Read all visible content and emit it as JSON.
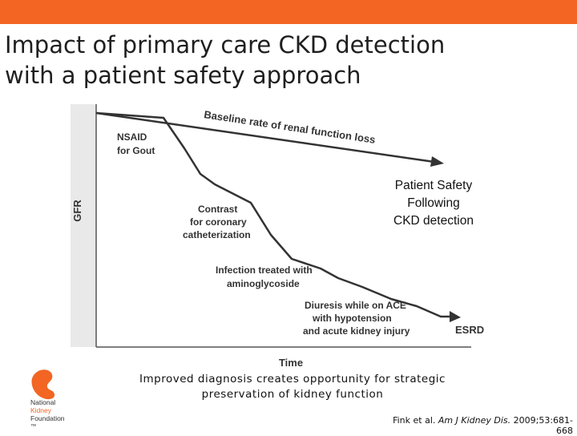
{
  "header": {
    "title_line1": "Impact of primary care CKD detection",
    "title_line2": "with a patient safety approach",
    "bar_color": "#f26522"
  },
  "diagram": {
    "y_axis_label": "GFR",
    "x_axis_label": "Time",
    "baseline_label": "Baseline rate of renal function loss",
    "events": [
      {
        "line1": "NSAID",
        "line2": "for Gout"
      },
      {
        "line1": "Contrast",
        "line2": "for coronary",
        "line3": "catheterization"
      },
      {
        "line1": "Infection treated with",
        "line2": "aminoglycoside"
      },
      {
        "line1": "Diuresis while on ACE",
        "line2": "with hypotension",
        "line3": "and acute kidney injury"
      }
    ],
    "endpoint_label": "ESRD",
    "patient_safety": {
      "line1": "Patient Safety",
      "line2": "Following",
      "line3": "CKD detection"
    }
  },
  "caption": {
    "line1": "Improved diagnosis creates opportunity for strategic",
    "line2": "preservation of kidney function"
  },
  "citation": {
    "prefix": "Fink et al. ",
    "journal": "Am J Kidney Dis.",
    "suffix": " 2009;53:681-668"
  },
  "logo": {
    "line1": "National",
    "line2": "Kidney",
    "line3": "Foundation",
    "mark": "™",
    "color": "#f26522"
  }
}
